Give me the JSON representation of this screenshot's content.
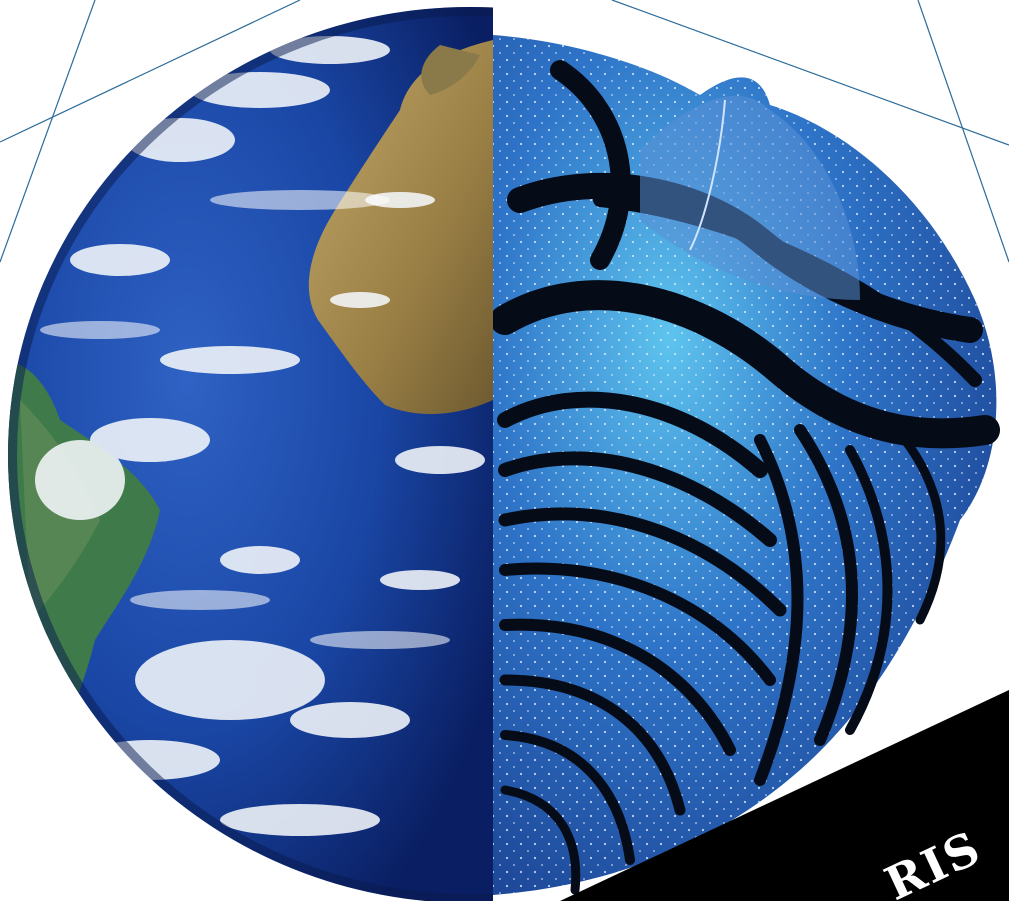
{
  "artwork": {
    "left_half": "earth-globe",
    "right_half": "trilobite-fossil"
  },
  "banner": {
    "text": "RIS"
  },
  "colors": {
    "background": "#ffffff",
    "frame_lines": "#2b6b9a",
    "ocean_deep": "#0d2a7a",
    "ocean_mid": "#1f4fb0",
    "continent": "#a08a52",
    "cloud": "#f4f7fb",
    "fossil_dark": "#060b18",
    "fossil_blue": "#2f6fc4",
    "fossil_cyan": "#4fb6e6",
    "banner": "#000000",
    "banner_text": "#ffffff"
  }
}
